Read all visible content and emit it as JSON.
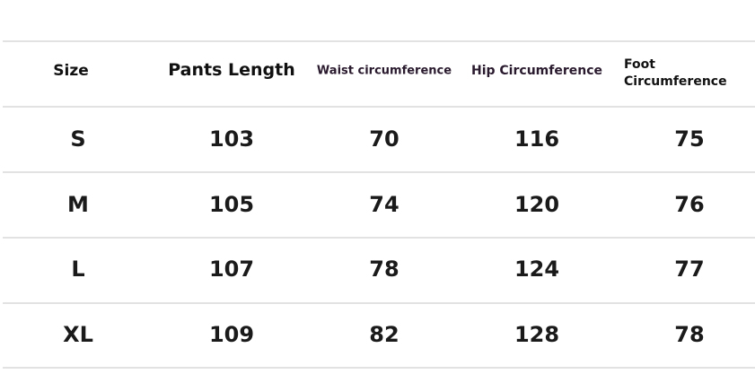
{
  "headers": [
    "Size",
    "Pants Length",
    "Waist circumference",
    "Hip Circumference"
  ],
  "foot_header": [
    "Foot",
    "Circumference"
  ],
  "rows": [
    [
      "S",
      "103",
      "70",
      "116",
      "75"
    ],
    [
      "M",
      "105",
      "74",
      "120",
      "76"
    ],
    [
      "L",
      "107",
      "78",
      "124",
      "77"
    ],
    [
      "XL",
      "109",
      "82",
      "128",
      "78"
    ]
  ]
}
